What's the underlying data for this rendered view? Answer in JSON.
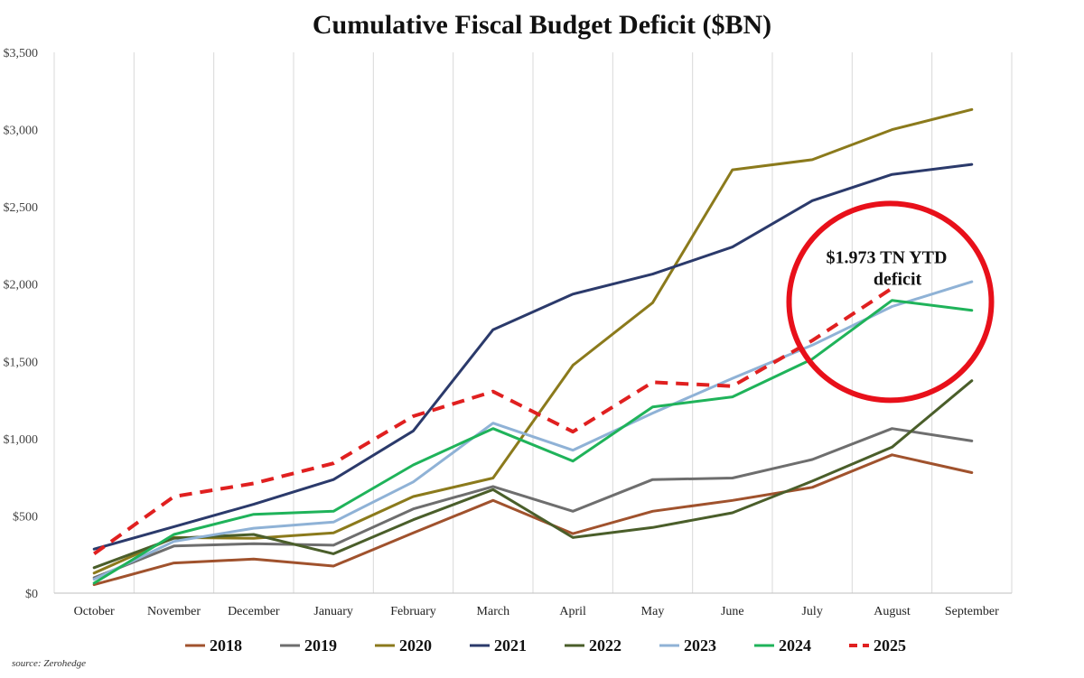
{
  "chart_data": {
    "type": "line",
    "title": "Cumulative Fiscal Budget Deficit ($BN)",
    "xlabel": "",
    "ylabel": "",
    "categories": [
      "October",
      "November",
      "December",
      "January",
      "February",
      "March",
      "April",
      "May",
      "June",
      "July",
      "August",
      "September"
    ],
    "ylim": [
      0,
      3500
    ],
    "yticks": [
      0,
      500,
      1000,
      1500,
      2000,
      2500,
      3000,
      3500
    ],
    "ytick_labels": [
      "$0",
      "$500",
      "$1,000",
      "$1,500",
      "$2,000",
      "$2,500",
      "$3,000",
      "$3,500"
    ],
    "grid": "vertical",
    "legend_position": "bottom",
    "series": [
      {
        "name": "2018",
        "color": "#a0522d",
        "style": "solid",
        "values": [
          55,
          195,
          220,
          175,
          390,
          600,
          385,
          530,
          600,
          685,
          895,
          780
        ]
      },
      {
        "name": "2019",
        "color": "#6e6e6e",
        "style": "solid",
        "values": [
          100,
          305,
          320,
          310,
          545,
          690,
          530,
          735,
          745,
          865,
          1065,
          985
        ]
      },
      {
        "name": "2020",
        "color": "#8b7a1c",
        "style": "solid",
        "values": [
          130,
          360,
          355,
          390,
          625,
          745,
          1475,
          1880,
          2740,
          2805,
          3000,
          3130
        ]
      },
      {
        "name": "2021",
        "color": "#2b3a6b",
        "style": "solid",
        "values": [
          285,
          430,
          575,
          735,
          1050,
          1705,
          1935,
          2065,
          2240,
          2540,
          2710,
          2775
        ]
      },
      {
        "name": "2022",
        "color": "#4a5e2a",
        "style": "solid",
        "values": [
          165,
          355,
          380,
          255,
          475,
          670,
          360,
          425,
          520,
          725,
          945,
          1375
        ]
      },
      {
        "name": "2023",
        "color": "#8fb2d6",
        "style": "solid",
        "values": [
          90,
          335,
          420,
          460,
          720,
          1100,
          925,
          1165,
          1390,
          1605,
          1855,
          2015
        ]
      },
      {
        "name": "2024",
        "color": "#1fb35a",
        "style": "solid",
        "values": [
          65,
          380,
          510,
          530,
          830,
          1065,
          855,
          1205,
          1270,
          1515,
          1895,
          1830
        ]
      },
      {
        "name": "2025",
        "color": "#e02020",
        "style": "dashed",
        "values": [
          255,
          625,
          710,
          840,
          1145,
          1305,
          1045,
          1365,
          1340,
          1635,
          1973,
          null
        ]
      }
    ],
    "annotations": [
      {
        "text_lines": [
          "$1.973 TN YTD",
          "deficit"
        ]
      }
    ],
    "source": "source: Zerohedge"
  }
}
